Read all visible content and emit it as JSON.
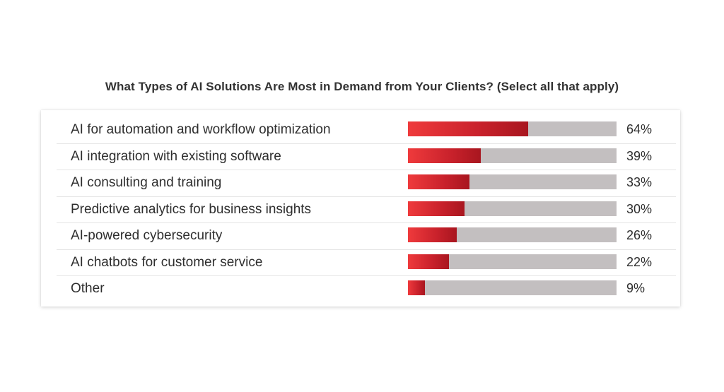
{
  "chart_data": {
    "type": "bar",
    "orientation": "horizontal",
    "title": "What Types of AI Solutions Are Most in Demand from Your Clients? (Select all that apply)",
    "categories": [
      "AI for automation and workflow optimization",
      "AI integration with existing software",
      "AI consulting and training",
      "Predictive analytics for business insights",
      "AI-powered cybersecurity",
      "AI chatbots for customer service",
      "Other"
    ],
    "values": [
      64,
      39,
      33,
      30,
      26,
      22,
      9
    ],
    "value_labels": [
      "64%",
      "39%",
      "33%",
      "30%",
      "26%",
      "22%",
      "9%"
    ],
    "unit": "%",
    "xlim": [
      0,
      100
    ],
    "colors": {
      "bar_start": "#ef3a3c",
      "bar_end": "#a8161f",
      "track": "#c3bfc0"
    }
  }
}
